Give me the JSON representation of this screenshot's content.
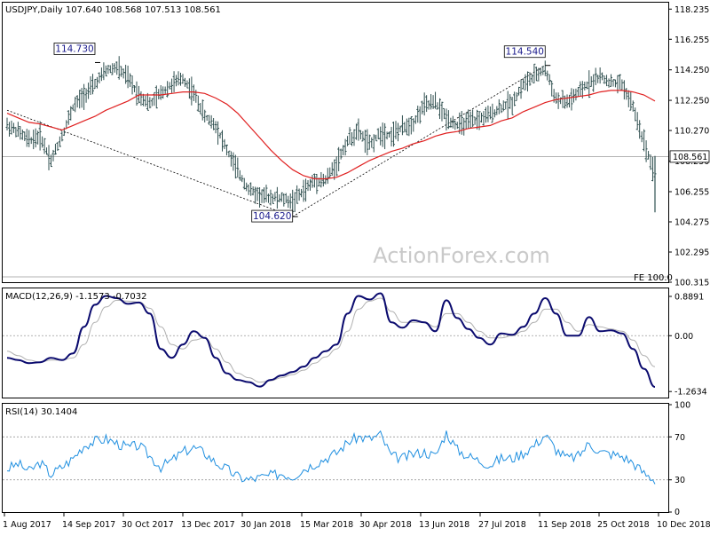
{
  "price_panel": {
    "header": "USDJPY,Daily  107.640 108.568 107.513 108.561",
    "watermark": "ActionForex.com",
    "fe_label": "FE 100.0",
    "current_price": "108.561",
    "annotations": [
      {
        "label": "114.730",
        "date_index": 8
      },
      {
        "label": "104.620",
        "date_index": 26
      },
      {
        "label": "114.540",
        "date_index": 49
      }
    ]
  },
  "macd_panel": {
    "header": "MACD(12,26,9) -1.1573 -0.7032",
    "ticks": [
      "0.8891",
      "0.00",
      "-1.2634"
    ]
  },
  "rsi_panel": {
    "header": "RSI(14) 30.1404",
    "ticks": [
      "100",
      "70",
      "30",
      "0"
    ]
  },
  "x_labels": [
    "1 Aug 2017",
    "14 Sep 2017",
    "30 Oct 2017",
    "13 Dec 2017",
    "30 Jan 2018",
    "15 Mar 2018",
    "30 Apr 2018",
    "13 Jun 2018",
    "27 Jul 2018",
    "11 Sep 2018",
    "25 Oct 2018",
    "10 Dec 2018"
  ],
  "chart_data": [
    {
      "type": "line",
      "subtype": "ohlc-bars-with-moving-average",
      "title": "USDJPY,Daily",
      "ylim": [
        100.315,
        118.6
      ],
      "yticks": [
        "118.235",
        "116.255",
        "114.250",
        "112.250",
        "110.270",
        "108.250",
        "106.255",
        "104.275",
        "102.295",
        "100.315"
      ],
      "grid": false,
      "weekly_close_approx": [
        110.6,
        110.2,
        109.6,
        109.9,
        108.3,
        109.9,
        111.8,
        112.6,
        113.3,
        114.2,
        114.4,
        113.7,
        112.6,
        112.0,
        112.7,
        113.3,
        113.7,
        112.7,
        111.2,
        110.6,
        109.0,
        107.6,
        106.4,
        106.0,
        105.9,
        105.8,
        105.6,
        106.3,
        107.0,
        107.0,
        108.1,
        109.6,
        110.2,
        109.3,
        110.1,
        110.0,
        110.4,
        110.8,
        111.9,
        112.1,
        111.1,
        110.6,
        110.8,
        111.0,
        111.3,
        111.8,
        112.1,
        113.3,
        113.8,
        114.3,
        112.3,
        112.1,
        112.7,
        113.4,
        113.8,
        113.4,
        113.3,
        111.8,
        109.5,
        107.4
      ],
      "moving_average_approx": [
        111.4,
        111.1,
        110.8,
        110.7,
        110.5,
        110.3,
        110.6,
        110.9,
        111.2,
        111.6,
        111.9,
        112.2,
        112.6,
        112.6,
        112.6,
        112.7,
        112.8,
        112.8,
        112.7,
        112.4,
        112.0,
        111.4,
        110.6,
        109.8,
        109.0,
        108.3,
        107.7,
        107.3,
        107.1,
        107.1,
        107.2,
        107.5,
        107.9,
        108.3,
        108.6,
        108.9,
        109.1,
        109.4,
        109.6,
        109.9,
        110.1,
        110.2,
        110.4,
        110.5,
        110.6,
        110.9,
        111.1,
        111.5,
        111.8,
        112.1,
        112.3,
        112.4,
        112.5,
        112.6,
        112.8,
        112.9,
        112.9,
        112.8,
        112.6,
        112.2
      ],
      "horizontal_line": 108.561,
      "trend_lines": [
        {
          "from": [
            0,
            111.6
          ],
          "to": [
            26,
            104.62
          ]
        },
        {
          "from": [
            26,
            104.62
          ],
          "to": [
            49,
            114.54
          ]
        }
      ]
    },
    {
      "type": "line",
      "title": "MACD(12,26,9)",
      "ylim": [
        -1.4,
        1.05
      ],
      "yticks": [
        "0.8891",
        "0.00",
        "-1.2634"
      ],
      "series": [
        {
          "name": "MACD(12,26,9)",
          "values": [
            -0.5,
            -0.55,
            -0.62,
            -0.6,
            -0.5,
            -0.55,
            -0.4,
            0.2,
            0.7,
            0.9,
            0.85,
            0.72,
            0.75,
            0.5,
            -0.3,
            -0.5,
            -0.2,
            0.1,
            -0.05,
            -0.5,
            -0.85,
            -1.0,
            -1.05,
            -1.15,
            -1.0,
            -0.9,
            -0.82,
            -0.7,
            -0.5,
            -0.35,
            -0.2,
            0.5,
            0.9,
            0.82,
            0.96,
            0.3,
            0.18,
            0.35,
            0.3,
            0.1,
            0.8,
            0.4,
            0.15,
            -0.05,
            -0.2,
            0.05,
            0.02,
            0.2,
            0.5,
            0.85,
            0.5,
            0.0,
            0.0,
            0.42,
            0.1,
            0.12,
            0.05,
            -0.3,
            -0.75,
            -1.16
          ]
        },
        {
          "name": "Signal",
          "values": [
            -0.35,
            -0.45,
            -0.55,
            -0.6,
            -0.55,
            -0.55,
            -0.5,
            -0.2,
            0.3,
            0.65,
            0.8,
            0.78,
            0.76,
            0.62,
            0.2,
            -0.2,
            -0.3,
            -0.1,
            -0.05,
            -0.3,
            -0.6,
            -0.85,
            -0.95,
            -1.05,
            -1.02,
            -0.95,
            -0.88,
            -0.78,
            -0.62,
            -0.48,
            -0.3,
            0.1,
            0.6,
            0.78,
            0.85,
            0.55,
            0.3,
            0.3,
            0.3,
            0.2,
            0.5,
            0.5,
            0.3,
            0.1,
            -0.05,
            -0.05,
            0.0,
            0.1,
            0.3,
            0.6,
            0.6,
            0.3,
            0.1,
            0.25,
            0.2,
            0.15,
            0.1,
            -0.1,
            -0.45,
            -0.7
          ]
        }
      ]
    },
    {
      "type": "line",
      "title": "RSI(14)",
      "ylim": [
        0,
        100
      ],
      "yticks": [
        "100",
        "70",
        "30",
        "0"
      ],
      "series": [
        {
          "name": "RSI(14)",
          "values": [
            40,
            45,
            38,
            46,
            35,
            42,
            50,
            62,
            66,
            68,
            64,
            60,
            62,
            52,
            42,
            48,
            56,
            60,
            55,
            46,
            40,
            33,
            30,
            32,
            34,
            36,
            33,
            40,
            45,
            50,
            55,
            65,
            70,
            68,
            72,
            52,
            50,
            54,
            56,
            52,
            74,
            58,
            52,
            48,
            44,
            50,
            50,
            55,
            62,
            72,
            58,
            50,
            52,
            64,
            56,
            54,
            52,
            46,
            36,
            30
          ]
        }
      ]
    }
  ]
}
